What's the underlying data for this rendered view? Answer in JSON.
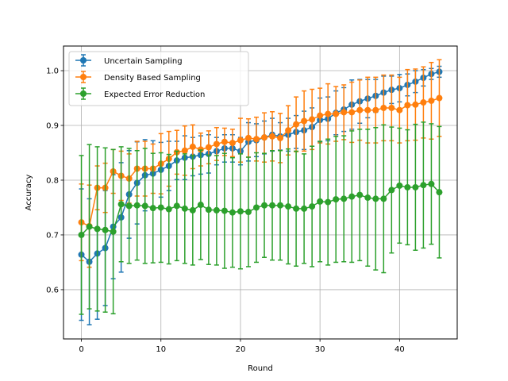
{
  "chart_data": {
    "type": "line",
    "title": "",
    "xlabel": "Round",
    "ylabel": "Accuracy",
    "xlim": [
      -2.25,
      47.25
    ],
    "ylim": [
      0.51,
      1.045
    ],
    "xticks": [
      0,
      10,
      20,
      30,
      40
    ],
    "yticks": [
      0.6,
      0.7,
      0.8,
      0.9,
      1.0
    ],
    "grid": true,
    "legend_position": "top-left",
    "x": [
      0,
      1,
      2,
      3,
      4,
      5,
      6,
      7,
      8,
      9,
      10,
      11,
      12,
      13,
      14,
      15,
      16,
      17,
      18,
      19,
      20,
      21,
      22,
      23,
      24,
      25,
      26,
      27,
      28,
      29,
      30,
      31,
      32,
      33,
      34,
      35,
      36,
      37,
      38,
      39,
      40,
      41,
      42,
      43,
      44,
      45
    ],
    "series": [
      {
        "name": "Uncertain Sampling",
        "color": "#1f77b4",
        "values": [
          0.664,
          0.651,
          0.666,
          0.676,
          0.715,
          0.732,
          0.774,
          0.795,
          0.809,
          0.812,
          0.819,
          0.826,
          0.836,
          0.841,
          0.843,
          0.846,
          0.848,
          0.853,
          0.858,
          0.858,
          0.853,
          0.87,
          0.873,
          0.878,
          0.883,
          0.88,
          0.883,
          0.888,
          0.891,
          0.897,
          0.91,
          0.912,
          0.923,
          0.929,
          0.938,
          0.944,
          0.949,
          0.954,
          0.96,
          0.965,
          0.968,
          0.974,
          0.98,
          0.987,
          0.994,
          0.998
        ],
        "error": [
          0.12,
          0.115,
          0.12,
          0.105,
          0.095,
          0.1,
          0.08,
          0.075,
          0.065,
          0.06,
          0.05,
          0.045,
          0.035,
          0.04,
          0.035,
          0.035,
          0.035,
          0.025,
          0.025,
          0.025,
          0.025,
          0.035,
          0.03,
          0.03,
          0.03,
          0.025,
          0.03,
          0.03,
          0.035,
          0.035,
          0.04,
          0.04,
          0.04,
          0.04,
          0.045,
          0.04,
          0.035,
          0.03,
          0.03,
          0.025,
          0.025,
          0.02,
          0.02,
          0.015,
          0.01,
          0.01
        ]
      },
      {
        "name": "Density Based Sampling",
        "color": "#ff7f0e",
        "values": [
          0.723,
          0.716,
          0.786,
          0.786,
          0.816,
          0.808,
          0.803,
          0.821,
          0.821,
          0.821,
          0.83,
          0.839,
          0.851,
          0.854,
          0.861,
          0.856,
          0.86,
          0.866,
          0.87,
          0.868,
          0.873,
          0.877,
          0.875,
          0.878,
          0.88,
          0.877,
          0.891,
          0.902,
          0.908,
          0.911,
          0.918,
          0.921,
          0.921,
          0.924,
          0.924,
          0.928,
          0.928,
          0.928,
          0.932,
          0.932,
          0.928,
          0.937,
          0.938,
          0.942,
          0.945,
          0.95
        ],
        "error": [
          0.07,
          0.075,
          0.04,
          0.045,
          0.04,
          0.045,
          0.045,
          0.05,
          0.05,
          0.045,
          0.055,
          0.05,
          0.04,
          0.045,
          0.04,
          0.03,
          0.03,
          0.03,
          0.025,
          0.025,
          0.04,
          0.035,
          0.04,
          0.045,
          0.045,
          0.045,
          0.045,
          0.05,
          0.055,
          0.055,
          0.05,
          0.055,
          0.05,
          0.05,
          0.055,
          0.055,
          0.06,
          0.06,
          0.06,
          0.06,
          0.06,
          0.065,
          0.065,
          0.065,
          0.07,
          0.07
        ]
      },
      {
        "name": "Expected Error Reduction",
        "color": "#2ca02c",
        "values": [
          0.7,
          0.715,
          0.711,
          0.709,
          0.706,
          0.756,
          0.753,
          0.754,
          0.753,
          0.749,
          0.75,
          0.747,
          0.753,
          0.748,
          0.745,
          0.755,
          0.746,
          0.745,
          0.744,
          0.741,
          0.743,
          0.742,
          0.75,
          0.754,
          0.754,
          0.754,
          0.752,
          0.748,
          0.748,
          0.752,
          0.761,
          0.76,
          0.765,
          0.766,
          0.77,
          0.773,
          0.768,
          0.766,
          0.766,
          0.782,
          0.79,
          0.787,
          0.787,
          0.791,
          0.793,
          0.778
        ],
        "error": [
          0.145,
          0.15,
          0.15,
          0.15,
          0.15,
          0.105,
          0.105,
          0.1,
          0.105,
          0.1,
          0.1,
          0.1,
          0.1,
          0.1,
          0.1,
          0.1,
          0.1,
          0.1,
          0.105,
          0.1,
          0.105,
          0.1,
          0.1,
          0.095,
          0.1,
          0.1,
          0.105,
          0.105,
          0.1,
          0.11,
          0.11,
          0.115,
          0.115,
          0.115,
          0.12,
          0.12,
          0.125,
          0.13,
          0.135,
          0.115,
          0.105,
          0.105,
          0.115,
          0.115,
          0.11,
          0.12
        ]
      }
    ]
  }
}
